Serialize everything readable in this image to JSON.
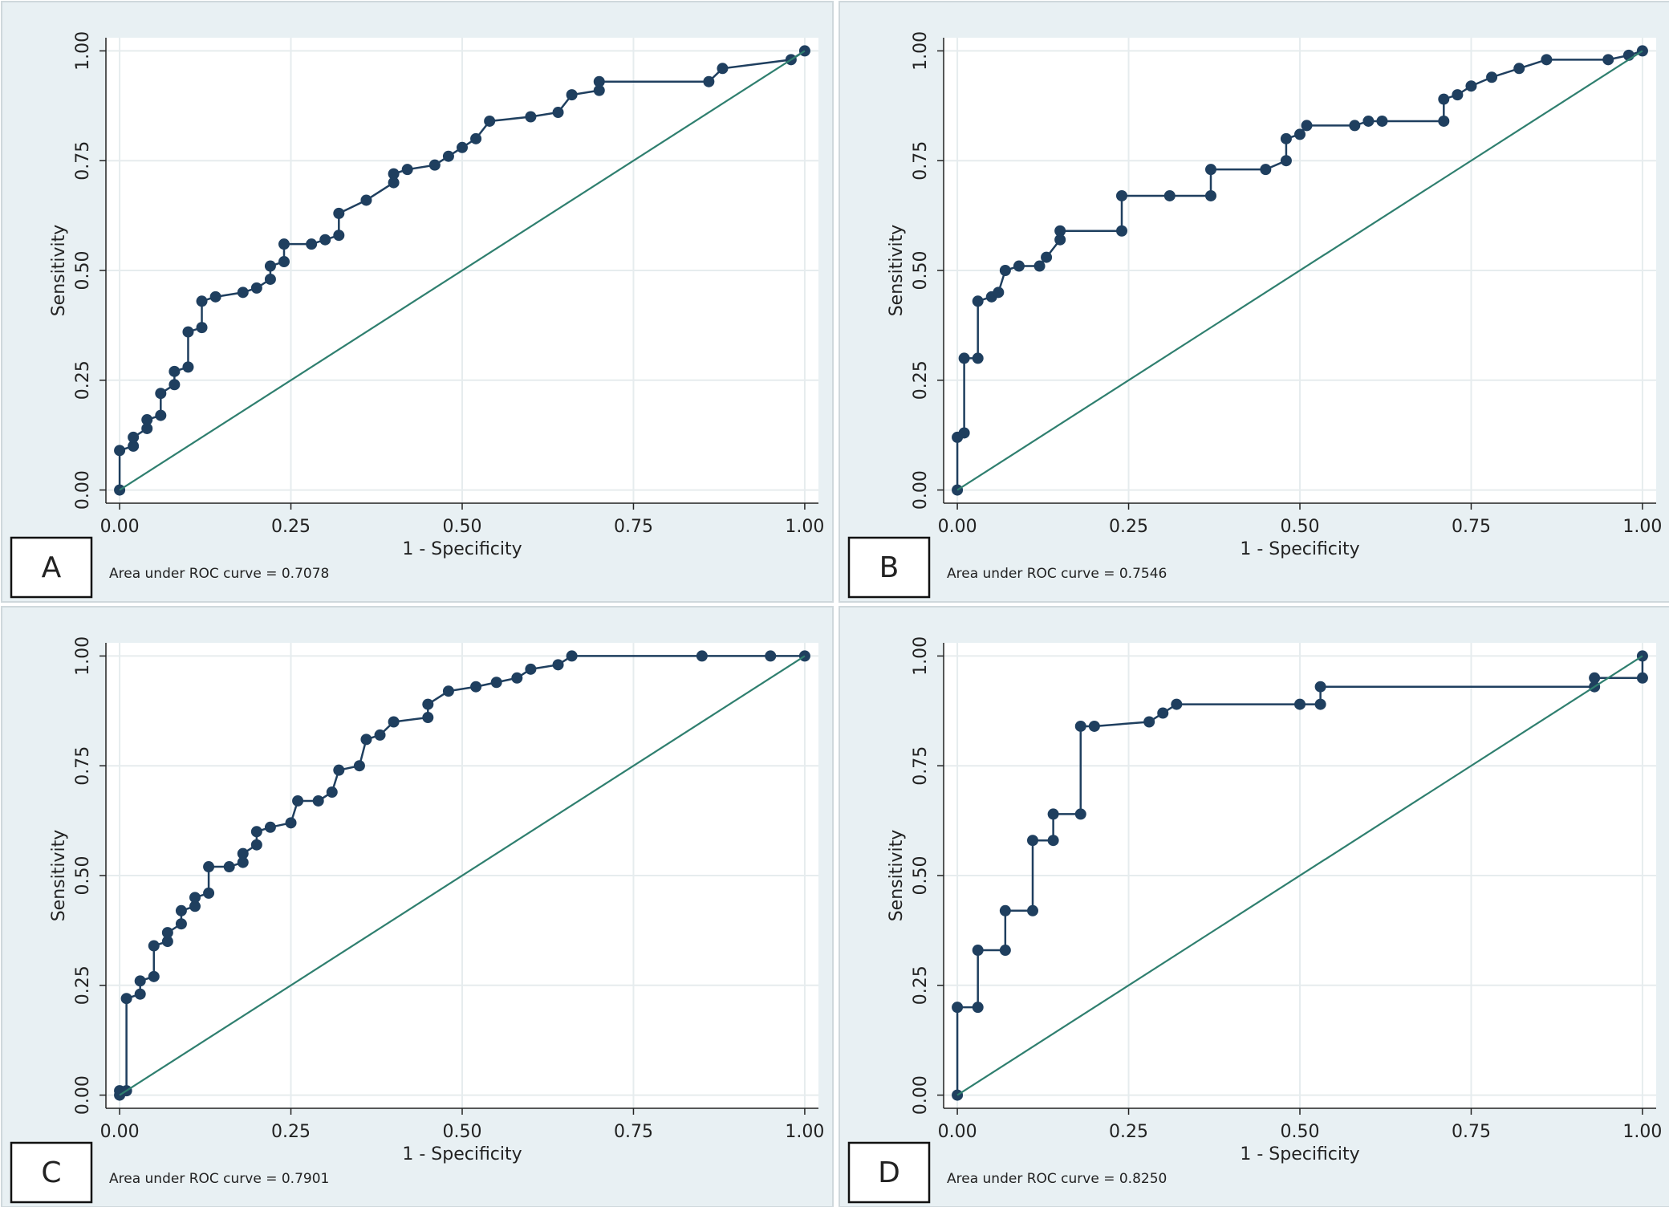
{
  "chart_data": [
    {
      "type": "line",
      "label": "A",
      "annotation": "Area under ROC curve = 0.7078",
      "xlabel": "1 - Specificity",
      "ylabel": "Sensitivity",
      "xlim": [
        -0.02,
        1.02
      ],
      "ylim": [
        -0.03,
        1.03
      ],
      "grid": true,
      "xticks": [
        {
          "value": 0,
          "label": "0.00"
        },
        {
          "value": 0.25,
          "label": "0.25"
        },
        {
          "value": 0.5,
          "label": "0.50"
        },
        {
          "value": 0.75,
          "label": "0.75"
        },
        {
          "value": 1,
          "label": "1.00"
        }
      ],
      "yticks": [
        {
          "value": 0,
          "label": "0.00"
        },
        {
          "value": 0.25,
          "label": "0.25"
        },
        {
          "value": 0.5,
          "label": "0.50"
        },
        {
          "value": 0.75,
          "label": "0.75"
        },
        {
          "value": 1,
          "label": "1.00"
        }
      ],
      "series": [
        {
          "color": "#1f3f5f",
          "markers": true,
          "x": [
            0,
            0,
            0.02,
            0.02,
            0.04,
            0.04,
            0.06,
            0.06,
            0.08,
            0.08,
            0.1,
            0.1,
            0.12,
            0.12,
            0.14,
            0.18,
            0.2,
            0.22,
            0.22,
            0.24,
            0.24,
            0.28,
            0.3,
            0.32,
            0.32,
            0.36,
            0.4,
            0.4,
            0.42,
            0.46,
            0.48,
            0.5,
            0.52,
            0.54,
            0.6,
            0.64,
            0.66,
            0.7,
            0.7,
            0.86,
            0.88,
            0.98,
            1
          ],
          "values": [
            0,
            0.09,
            0.1,
            0.12,
            0.14,
            0.16,
            0.17,
            0.22,
            0.24,
            0.27,
            0.28,
            0.36,
            0.37,
            0.43,
            0.44,
            0.45,
            0.46,
            0.48,
            0.51,
            0.52,
            0.56,
            0.56,
            0.57,
            0.58,
            0.63,
            0.66,
            0.7,
            0.72,
            0.73,
            0.74,
            0.76,
            0.78,
            0.8,
            0.84,
            0.85,
            0.86,
            0.9,
            0.91,
            0.93,
            0.93,
            0.96,
            0.98,
            1
          ]
        },
        {
          "color": "#2f7f6f",
          "markers": false,
          "x": [
            0,
            1
          ],
          "values": [
            0,
            1
          ]
        }
      ]
    },
    {
      "type": "line",
      "label": "B",
      "annotation": "Area under ROC curve = 0.7546",
      "xlabel": "1 - Specificity",
      "ylabel": "Sensitivity",
      "xlim": [
        -0.02,
        1.02
      ],
      "ylim": [
        -0.03,
        1.03
      ],
      "grid": true,
      "xticks": [
        {
          "value": 0,
          "label": "0.00"
        },
        {
          "value": 0.25,
          "label": "0.25"
        },
        {
          "value": 0.5,
          "label": "0.50"
        },
        {
          "value": 0.75,
          "label": "0.75"
        },
        {
          "value": 1,
          "label": "1.00"
        }
      ],
      "yticks": [
        {
          "value": 0,
          "label": "0.00"
        },
        {
          "value": 0.25,
          "label": "0.25"
        },
        {
          "value": 0.5,
          "label": "0.50"
        },
        {
          "value": 0.75,
          "label": "0.75"
        },
        {
          "value": 1,
          "label": "1.00"
        }
      ],
      "series": [
        {
          "color": "#1f3f5f",
          "markers": true,
          "x": [
            0,
            0,
            0.01,
            0.01,
            0.03,
            0.03,
            0.05,
            0.06,
            0.07,
            0.09,
            0.12,
            0.13,
            0.15,
            0.15,
            0.24,
            0.24,
            0.31,
            0.37,
            0.37,
            0.45,
            0.48,
            0.48,
            0.5,
            0.51,
            0.58,
            0.6,
            0.62,
            0.71,
            0.71,
            0.73,
            0.75,
            0.78,
            0.82,
            0.86,
            0.95,
            0.98,
            1
          ],
          "values": [
            0,
            0.12,
            0.13,
            0.3,
            0.3,
            0.43,
            0.44,
            0.45,
            0.5,
            0.51,
            0.51,
            0.53,
            0.57,
            0.59,
            0.59,
            0.67,
            0.67,
            0.67,
            0.73,
            0.73,
            0.75,
            0.8,
            0.81,
            0.83,
            0.83,
            0.84,
            0.84,
            0.84,
            0.89,
            0.9,
            0.92,
            0.94,
            0.96,
            0.98,
            0.98,
            0.99,
            1
          ]
        },
        {
          "color": "#2f7f6f",
          "markers": false,
          "x": [
            0,
            1
          ],
          "values": [
            0,
            1
          ]
        }
      ]
    },
    {
      "type": "line",
      "label": "C",
      "annotation": "Area under ROC curve = 0.7901",
      "xlabel": "1 - Specificity",
      "ylabel": "Sensitivity",
      "xlim": [
        -0.02,
        1.02
      ],
      "ylim": [
        -0.03,
        1.03
      ],
      "grid": true,
      "xticks": [
        {
          "value": 0,
          "label": "0.00"
        },
        {
          "value": 0.25,
          "label": "0.25"
        },
        {
          "value": 0.5,
          "label": "0.50"
        },
        {
          "value": 0.75,
          "label": "0.75"
        },
        {
          "value": 1,
          "label": "1.00"
        }
      ],
      "yticks": [
        {
          "value": 0,
          "label": "0.00"
        },
        {
          "value": 0.25,
          "label": "0.25"
        },
        {
          "value": 0.5,
          "label": "0.50"
        },
        {
          "value": 0.75,
          "label": "0.75"
        },
        {
          "value": 1,
          "label": "1.00"
        }
      ],
      "series": [
        {
          "color": "#1f3f5f",
          "markers": true,
          "x": [
            0,
            0,
            0.01,
            0.01,
            0.03,
            0.03,
            0.05,
            0.05,
            0.07,
            0.07,
            0.09,
            0.09,
            0.11,
            0.11,
            0.13,
            0.13,
            0.16,
            0.18,
            0.18,
            0.2,
            0.2,
            0.22,
            0.25,
            0.26,
            0.29,
            0.31,
            0.32,
            0.35,
            0.36,
            0.38,
            0.4,
            0.45,
            0.45,
            0.48,
            0.52,
            0.55,
            0.58,
            0.6,
            0.64,
            0.66,
            0.85,
            0.95,
            1
          ],
          "values": [
            0,
            0.01,
            0.01,
            0.22,
            0.23,
            0.26,
            0.27,
            0.34,
            0.35,
            0.37,
            0.39,
            0.42,
            0.43,
            0.45,
            0.46,
            0.52,
            0.52,
            0.53,
            0.55,
            0.57,
            0.6,
            0.61,
            0.62,
            0.67,
            0.67,
            0.69,
            0.74,
            0.75,
            0.81,
            0.82,
            0.85,
            0.86,
            0.89,
            0.92,
            0.93,
            0.94,
            0.95,
            0.97,
            0.98,
            1,
            1,
            1,
            1
          ]
        },
        {
          "color": "#2f7f6f",
          "markers": false,
          "x": [
            0,
            1
          ],
          "values": [
            0,
            1
          ]
        }
      ]
    },
    {
      "type": "line",
      "label": "D",
      "annotation": "Area under ROC curve = 0.8250",
      "xlabel": "1 - Specificity",
      "ylabel": "Sensitivity",
      "xlim": [
        -0.02,
        1.02
      ],
      "ylim": [
        -0.03,
        1.03
      ],
      "grid": true,
      "xticks": [
        {
          "value": 0,
          "label": "0.00"
        },
        {
          "value": 0.25,
          "label": "0.25"
        },
        {
          "value": 0.5,
          "label": "0.50"
        },
        {
          "value": 0.75,
          "label": "0.75"
        },
        {
          "value": 1,
          "label": "1.00"
        }
      ],
      "yticks": [
        {
          "value": 0,
          "label": "0.00"
        },
        {
          "value": 0.25,
          "label": "0.25"
        },
        {
          "value": 0.5,
          "label": "0.50"
        },
        {
          "value": 0.75,
          "label": "0.75"
        },
        {
          "value": 1,
          "label": "1.00"
        }
      ],
      "series": [
        {
          "color": "#1f3f5f",
          "markers": true,
          "x": [
            0,
            0,
            0.03,
            0.03,
            0.07,
            0.07,
            0.11,
            0.11,
            0.14,
            0.14,
            0.18,
            0.18,
            0.2,
            0.28,
            0.3,
            0.32,
            0.5,
            0.53,
            0.53,
            0.93,
            0.93,
            1,
            1
          ],
          "values": [
            0,
            0.2,
            0.2,
            0.33,
            0.33,
            0.42,
            0.42,
            0.58,
            0.58,
            0.64,
            0.64,
            0.84,
            0.84,
            0.85,
            0.87,
            0.89,
            0.89,
            0.89,
            0.93,
            0.93,
            0.95,
            0.95,
            1
          ]
        },
        {
          "color": "#2f7f6f",
          "markers": false,
          "x": [
            0,
            1
          ],
          "values": [
            0,
            1
          ]
        }
      ]
    }
  ]
}
